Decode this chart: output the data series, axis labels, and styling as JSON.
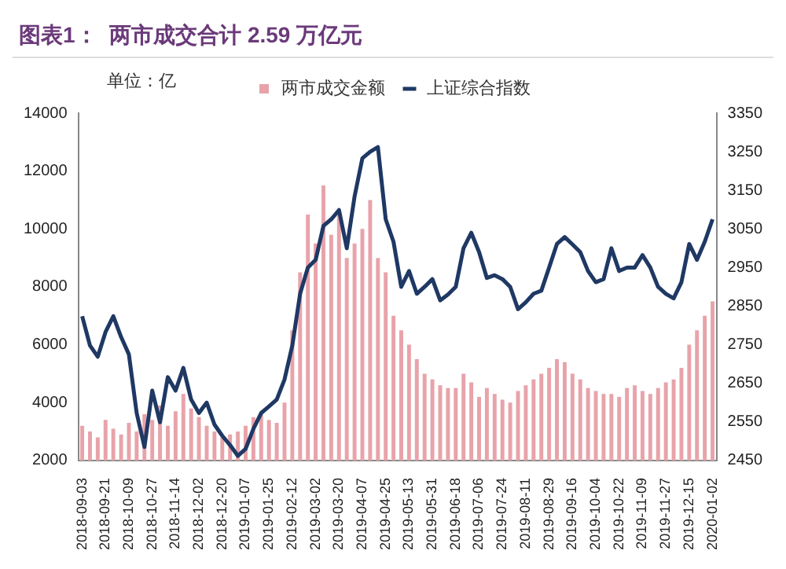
{
  "chart_data": {
    "type": "bar",
    "title": "图表1：  两市成交合计 2.59 万亿元",
    "ylabel": "单位：亿",
    "categories": [
      "2018-09-03",
      null,
      null,
      "2018-09-21",
      null,
      null,
      "2018-10-09",
      null,
      null,
      "2018-10-27",
      null,
      null,
      "2018-11-14",
      null,
      null,
      "2018-12-02",
      null,
      null,
      "2018-12-20",
      null,
      null,
      "2019-01-07",
      null,
      null,
      "2019-01-25",
      null,
      null,
      "2019-02-12",
      null,
      null,
      "2019-03-02",
      null,
      null,
      "2019-03-20",
      null,
      null,
      "2019-04-07",
      null,
      null,
      "2019-04-25",
      null,
      null,
      "2019-05-13",
      null,
      null,
      "2019-05-31",
      null,
      null,
      "2019-06-18",
      null,
      null,
      "2019-07-06",
      null,
      null,
      "2019-07-24",
      null,
      null,
      "2019-08-11",
      null,
      null,
      "2019-08-29",
      null,
      null,
      "2019-09-16",
      null,
      null,
      "2019-10-04",
      null,
      null,
      "2019-10-22",
      null,
      null,
      "2019-11-09",
      null,
      null,
      "2019-11-27",
      null,
      null,
      "2019-12-15",
      null,
      null,
      "2020-01-02"
    ],
    "series": [
      {
        "name": "两市成交金额",
        "color": "#e8a3aa",
        "values": [
          3200,
          3000,
          2800,
          3400,
          3100,
          2900,
          3300,
          3000,
          3600,
          3400,
          3900,
          3200,
          3700,
          4300,
          3800,
          3500,
          3200,
          3000,
          2800,
          2900,
          3000,
          3200,
          3500,
          3600,
          3400,
          3300,
          4000,
          6500,
          8500,
          10500,
          9500,
          11500,
          9800,
          10500,
          9000,
          9500,
          10000,
          11000,
          9000,
          8500,
          7000,
          6500,
          6000,
          5500,
          5000,
          4800,
          4600,
          4500,
          4500,
          5000,
          4700,
          4200,
          4500,
          4300,
          4100,
          4000,
          4400,
          4600,
          4800,
          5000,
          5200,
          5500,
          5400,
          5000,
          4800,
          4500,
          4400,
          4300,
          4300,
          4200,
          4500,
          4600,
          4400,
          4300,
          4500,
          4700,
          4800,
          5200,
          6000,
          6500,
          7000,
          7500
        ]
      },
      {
        "type": "line",
        "name": "上证综合指数",
        "color": "#1f3864",
        "axis": "y2",
        "values": [
          2824,
          2748,
          2719,
          2783,
          2824,
          2770,
          2725,
          2573,
          2485,
          2631,
          2549,
          2666,
          2631,
          2690,
          2608,
          2573,
          2600,
          2543,
          2514,
          2490,
          2462,
          2480,
          2532,
          2573,
          2590,
          2608,
          2660,
          2748,
          2882,
          2950,
          2970,
          3058,
          3075,
          3099,
          3000,
          3134,
          3233,
          3250,
          3262,
          3075,
          3017,
          2900,
          2941,
          2882,
          2900,
          2920,
          2865,
          2880,
          2900,
          3000,
          3040,
          2990,
          2923,
          2930,
          2920,
          2900,
          2842,
          2860,
          2882,
          2890,
          2950,
          3011,
          3029,
          3010,
          2990,
          2941,
          2912,
          2920,
          3000,
          2941,
          2950,
          2950,
          2982,
          2950,
          2900,
          2882,
          2870,
          2912,
          3011,
          2970,
          3017,
          3075
        ]
      }
    ],
    "ylim": [
      2000,
      14000
    ],
    "yticks": [
      2000,
      4000,
      6000,
      8000,
      10000,
      12000,
      14000
    ],
    "y2lim": [
      2450,
      3350
    ],
    "y2ticks": [
      2450,
      2550,
      2650,
      2750,
      2850,
      2950,
      3050,
      3150,
      3250,
      3350
    ],
    "legend": "top",
    "grid": false
  }
}
